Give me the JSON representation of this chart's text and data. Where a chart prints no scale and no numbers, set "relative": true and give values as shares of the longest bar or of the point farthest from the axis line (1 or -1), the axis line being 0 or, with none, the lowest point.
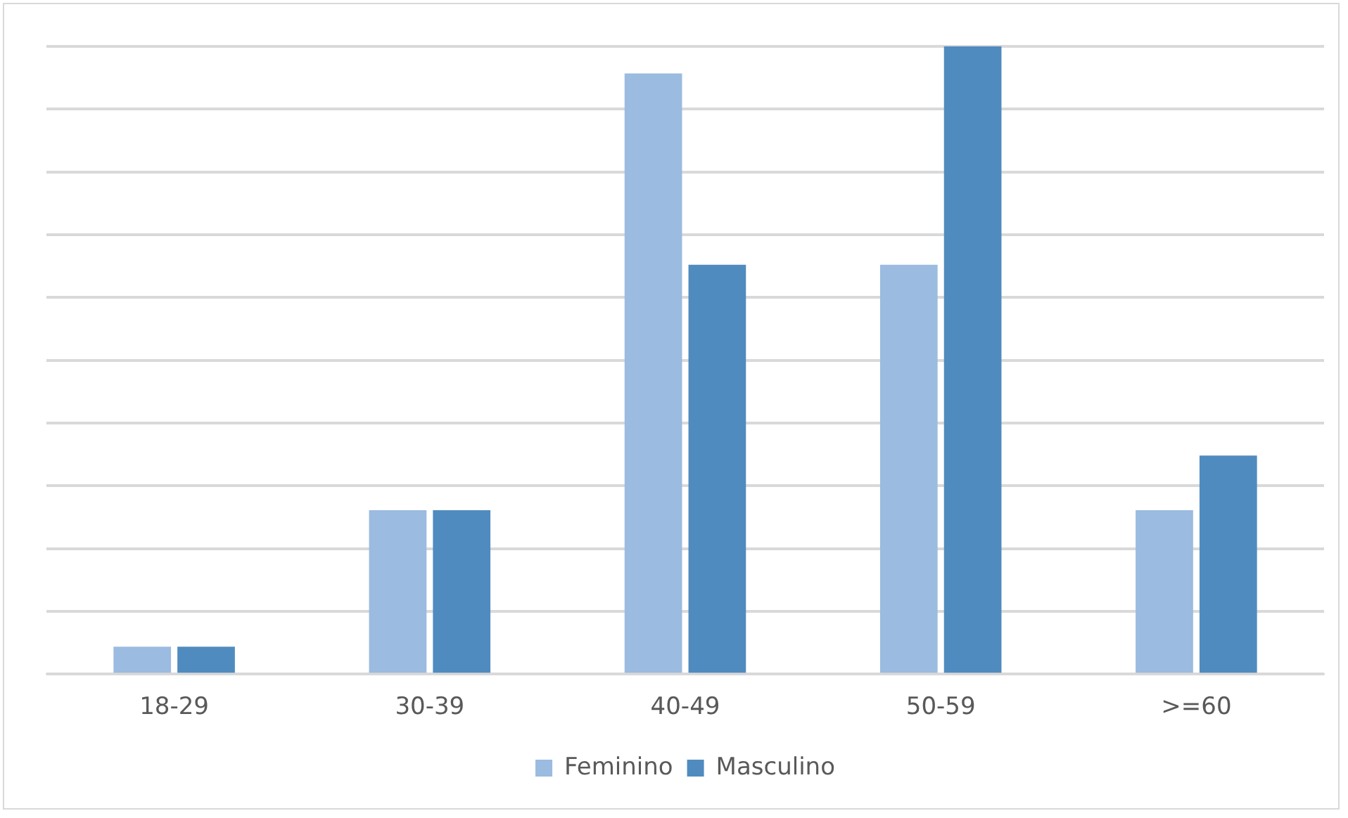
{
  "chart_data": {
    "type": "bar",
    "relative": true,
    "categories": [
      "18-29",
      "30-39",
      "40-49",
      "50-59",
      ">=60"
    ],
    "series": [
      {
        "name": "Feminino",
        "color": "#9bbbe0",
        "values": [
          0.0435,
          0.261,
          0.957,
          0.652,
          0.261
        ]
      },
      {
        "name": "Masculino",
        "color": "#508bbf",
        "values": [
          0.0435,
          0.261,
          0.652,
          1,
          0.348
        ]
      }
    ],
    "grid": "y",
    "legend": "bottom"
  }
}
